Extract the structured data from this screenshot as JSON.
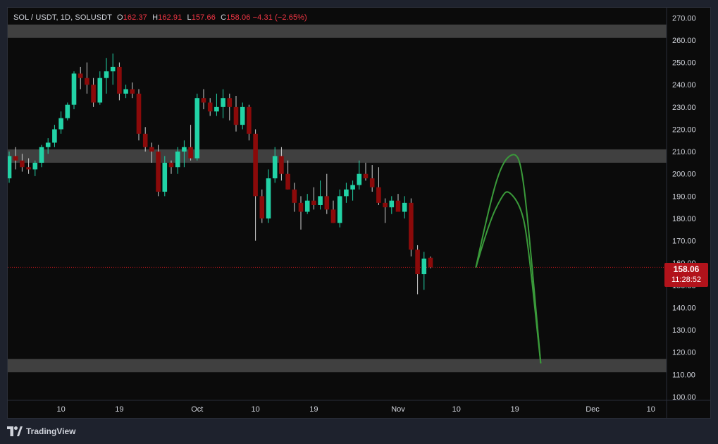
{
  "header": {
    "symbol": "SOL / USDT, 1D, SOLUSDT",
    "open_label": "O",
    "open": "162.37",
    "high_label": "H",
    "high": "162.91",
    "low_label": "L",
    "low": "157.66",
    "close_label": "C",
    "close": "158.06",
    "change": "−4.31 (−2.65%)"
  },
  "price_tag": {
    "price": "158.06",
    "countdown": "11:28:52"
  },
  "footer": {
    "brand": "TradingView"
  },
  "colors": {
    "up": "#22d3a6",
    "down": "#8b0a0a",
    "zone": "#4a4a4a",
    "projection": "#3a9a3a",
    "last_price_line": "#b2131b",
    "background": "#0b0b0b"
  },
  "chart_data": {
    "type": "candlestick",
    "ylim": [
      100,
      272
    ],
    "y_ticks": [
      "270.00",
      "260.00",
      "250.00",
      "240.00",
      "230.00",
      "220.00",
      "210.00",
      "200.00",
      "190.00",
      "180.00",
      "170.00",
      "160.00",
      "150.00",
      "140.00",
      "130.00",
      "120.00",
      "110.00",
      "100.00"
    ],
    "x_ticks": [
      {
        "label": "10",
        "bar": 8
      },
      {
        "label": "19",
        "bar": 17
      },
      {
        "label": "Oct",
        "bar": 29
      },
      {
        "label": "10",
        "bar": 38
      },
      {
        "label": "19",
        "bar": 47
      },
      {
        "label": "Nov",
        "bar": 60
      },
      {
        "label": "10",
        "bar": 69
      },
      {
        "label": "19",
        "bar": 78
      },
      {
        "label": "Dec",
        "bar": 90
      },
      {
        "label": "10",
        "bar": 99
      }
    ],
    "candles": [
      [
        198,
        210,
        196,
        208
      ],
      [
        208,
        212,
        202,
        206
      ],
      [
        206,
        209,
        201,
        203
      ],
      [
        203,
        207,
        200,
        202
      ],
      [
        202,
        206,
        199,
        205
      ],
      [
        205,
        213,
        203,
        212
      ],
      [
        212,
        216,
        209,
        214
      ],
      [
        214,
        222,
        212,
        220
      ],
      [
        220,
        228,
        218,
        225
      ],
      [
        225,
        232,
        224,
        231
      ],
      [
        231,
        246,
        229,
        245
      ],
      [
        245,
        248,
        238,
        243
      ],
      [
        243,
        250,
        236,
        240
      ],
      [
        240,
        243,
        230,
        232
      ],
      [
        232,
        246,
        231,
        243
      ],
      [
        243,
        252,
        236,
        246
      ],
      [
        246,
        254,
        240,
        248
      ],
      [
        248,
        250,
        233,
        236
      ],
      [
        236,
        240,
        234,
        238
      ],
      [
        238,
        241,
        234,
        236
      ],
      [
        236,
        238,
        215,
        218
      ],
      [
        218,
        221,
        210,
        212
      ],
      [
        212,
        214,
        205,
        210
      ],
      [
        210,
        213,
        190,
        192
      ],
      [
        192,
        208,
        190,
        205
      ],
      [
        205,
        206,
        200,
        203
      ],
      [
        203,
        212,
        200,
        210
      ],
      [
        210,
        215,
        203,
        212
      ],
      [
        212,
        222,
        206,
        207
      ],
      [
        207,
        236,
        206,
        234
      ],
      [
        234,
        238,
        229,
        232
      ],
      [
        232,
        234,
        226,
        228
      ],
      [
        228,
        236,
        226,
        230
      ],
      [
        230,
        238,
        225,
        234
      ],
      [
        234,
        236,
        224,
        230
      ],
      [
        230,
        235,
        219,
        222
      ],
      [
        222,
        232,
        220,
        230
      ],
      [
        230,
        231,
        215,
        218
      ],
      [
        218,
        220,
        170,
        190
      ],
      [
        190,
        193,
        178,
        180
      ],
      [
        180,
        202,
        178,
        198
      ],
      [
        198,
        212,
        196,
        208
      ],
      [
        208,
        212,
        197,
        200
      ],
      [
        200,
        206,
        193,
        193
      ],
      [
        193,
        196,
        183,
        187
      ],
      [
        187,
        190,
        175,
        183
      ],
      [
        183,
        191,
        182,
        188
      ],
      [
        188,
        194,
        184,
        186
      ],
      [
        186,
        197,
        184,
        190
      ],
      [
        190,
        200,
        182,
        184
      ],
      [
        184,
        188,
        178,
        178
      ],
      [
        178,
        193,
        176,
        190
      ],
      [
        190,
        196,
        187,
        193
      ],
      [
        193,
        197,
        188,
        195
      ],
      [
        195,
        206,
        193,
        200
      ],
      [
        200,
        205,
        197,
        198
      ],
      [
        198,
        204,
        192,
        194
      ],
      [
        194,
        203,
        186,
        187
      ],
      [
        187,
        189,
        178,
        185
      ],
      [
        185,
        190,
        182,
        188
      ],
      [
        188,
        191,
        184,
        183
      ],
      [
        183,
        190,
        180,
        187
      ],
      [
        187,
        189,
        163,
        166
      ],
      [
        166,
        168,
        146,
        155
      ],
      [
        155,
        165,
        148,
        162
      ],
      [
        162.37,
        162.91,
        157.66,
        158.06
      ]
    ],
    "support_resistance_zones": [
      [
        261,
        267
      ],
      [
        205,
        211
      ],
      [
        111,
        117
      ]
    ],
    "last_price": 158.06,
    "projections": [
      {
        "points": [
          [
            72,
            158
          ],
          [
            74,
            185
          ],
          [
            76,
            205
          ],
          [
            78,
            210
          ],
          [
            79,
            204
          ],
          [
            80,
            180
          ],
          [
            82,
            115
          ]
        ]
      },
      {
        "points": [
          [
            72,
            158
          ],
          [
            74,
            178
          ],
          [
            76,
            190
          ],
          [
            77,
            193
          ],
          [
            79,
            185
          ],
          [
            80,
            170
          ],
          [
            82,
            115
          ]
        ]
      }
    ]
  }
}
